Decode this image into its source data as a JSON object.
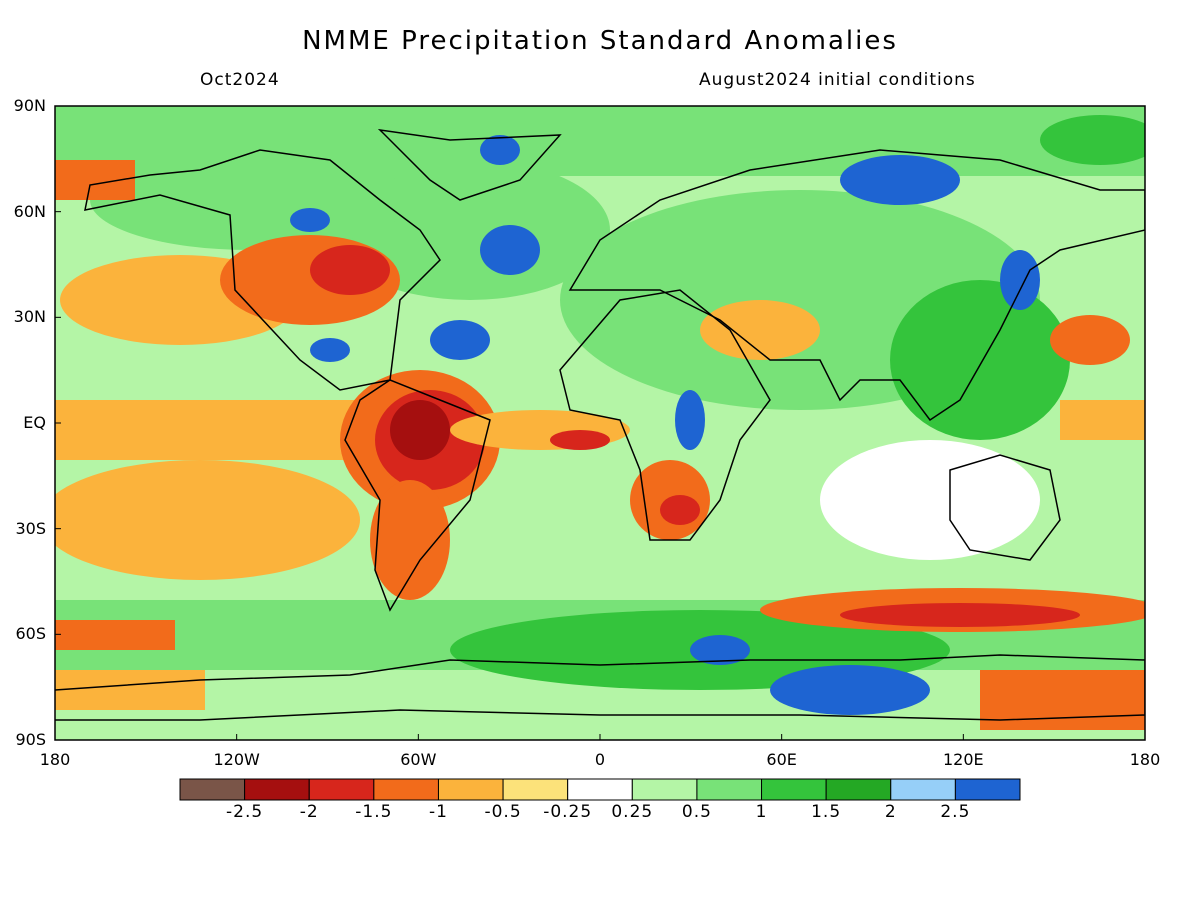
{
  "header": {
    "title": "NMME Precipitation Standard Anomalies",
    "valid_month": "Oct2024",
    "init_conditions": "August2024 initial conditions"
  },
  "axes": {
    "lat_labels": [
      "90N",
      "60N",
      "30N",
      "EQ",
      "30S",
      "60S",
      "90S"
    ],
    "lon_labels": [
      "180",
      "120W",
      "60W",
      "0",
      "60E",
      "120E",
      "180"
    ],
    "lat_values": [
      90,
      60,
      30,
      0,
      -30,
      -60,
      -90
    ],
    "lon_values": [
      -180,
      -120,
      -60,
      0,
      60,
      120,
      180
    ]
  },
  "colorbar": {
    "labels": [
      "-2.5",
      "-2",
      "-1.5",
      "-1",
      "-0.5",
      "-0.25",
      "0.25",
      "0.5",
      "1",
      "1.5",
      "2",
      "2.5"
    ],
    "colors": [
      "#7a5548",
      "#a50f0f",
      "#d7261c",
      "#f26b1b",
      "#fbb33c",
      "#fce27a",
      "#ffffff",
      "#b4f5a6",
      "#78e278",
      "#34c43c",
      "#24a824",
      "#96cff8",
      "#1e64d2"
    ]
  },
  "colors": {
    "ocean_bg": "#b4f5a6",
    "coast": "#000000"
  }
}
